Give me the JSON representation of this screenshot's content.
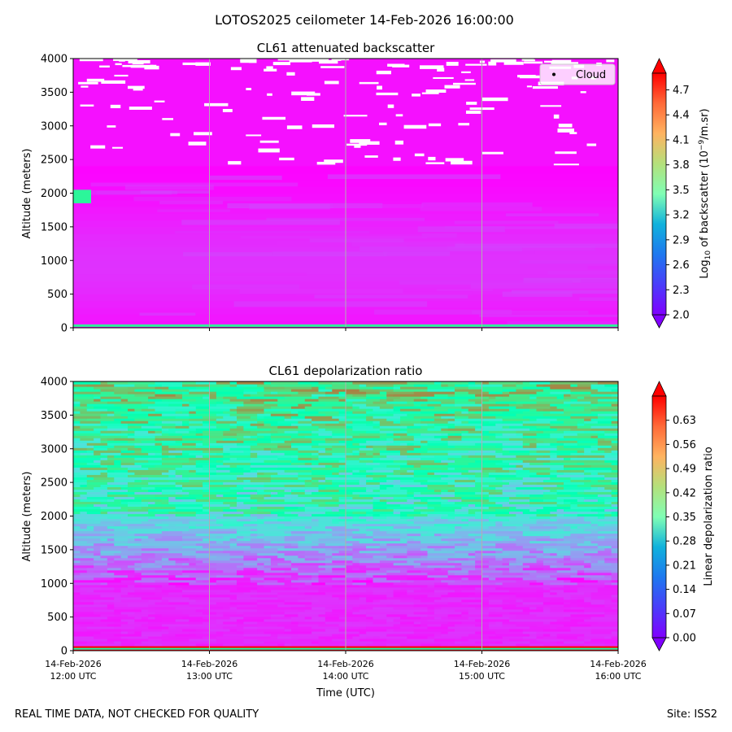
{
  "figure": {
    "suptitle": "LOTOS2025 ceilometer 14-Feb-2026 16:00:00",
    "footer_left": "REAL TIME DATA, NOT CHECKED FOR QUALITY",
    "footer_right": "Site: ISS2"
  },
  "chart_data": [
    {
      "type": "heatmap",
      "title": "CL61 attenuated backscatter",
      "ylabel": "Altitude (meters)",
      "ylim": [
        0,
        4000
      ],
      "yticks": [
        0,
        500,
        1000,
        1500,
        2000,
        2500,
        3000,
        3500,
        4000
      ],
      "x_tick_labels_shown": false,
      "legend": {
        "label": "Cloud",
        "placement": "top-right"
      },
      "colorbar": {
        "label_prefix": "Log",
        "label_sub": "10",
        "label_mid": " of backscatter (10",
        "label_sup": "−9",
        "label_end": "/m.sr)",
        "ticks": [
          "2.0",
          "2.3",
          "2.6",
          "2.9",
          "3.2",
          "3.5",
          "3.8",
          "4.1",
          "4.4",
          "4.7"
        ],
        "range": [
          2.0,
          4.9
        ],
        "extend": "both",
        "colormap": "rainbow"
      },
      "features": {
        "surface_band": {
          "value": 3.7,
          "alt_range": [
            0,
            50
          ]
        },
        "layer_near_2000m": {
          "value": 3.7,
          "alt_range": [
            1850,
            2050
          ],
          "time_range": [
            "12:00",
            "12:10"
          ]
        },
        "cloud_patches_alt_range": [
          2400,
          4000
        ]
      }
    },
    {
      "type": "heatmap",
      "title": "CL61 depolarization ratio",
      "ylabel": "Altitude (meters)",
      "xlabel": "Time (UTC)",
      "ylim": [
        0,
        4000
      ],
      "yticks": [
        0,
        500,
        1000,
        1500,
        2000,
        2500,
        3000,
        3500,
        4000
      ],
      "xticks": [
        {
          "date": "14-Feb-2026",
          "time": "12:00 UTC"
        },
        {
          "date": "14-Feb-2026",
          "time": "13:00 UTC"
        },
        {
          "date": "14-Feb-2026",
          "time": "14:00 UTC"
        },
        {
          "date": "14-Feb-2026",
          "time": "15:00 UTC"
        },
        {
          "date": "14-Feb-2026",
          "time": "16:00 UTC"
        }
      ],
      "colorbar": {
        "label": "Linear depolarization ratio",
        "ticks": [
          "0.00",
          "0.07",
          "0.14",
          "0.21",
          "0.28",
          "0.35",
          "0.42",
          "0.49",
          "0.56",
          "0.63"
        ],
        "range": [
          0.0,
          0.7
        ],
        "extend": "both",
        "colormap": "rainbow"
      },
      "features": {
        "surface_band": {
          "value": 0.7,
          "alt_range": [
            0,
            40
          ]
        },
        "low_layer": {
          "value_range": [
            0.0,
            0.05
          ],
          "alt_range": [
            50,
            1000
          ]
        },
        "mid_layer": {
          "value_range": [
            0.07,
            0.25
          ],
          "alt_range": [
            1000,
            2000
          ]
        },
        "upper_layer": {
          "value_range": [
            0.3,
            0.7
          ],
          "alt_range": [
            2000,
            4000
          ]
        }
      }
    }
  ]
}
